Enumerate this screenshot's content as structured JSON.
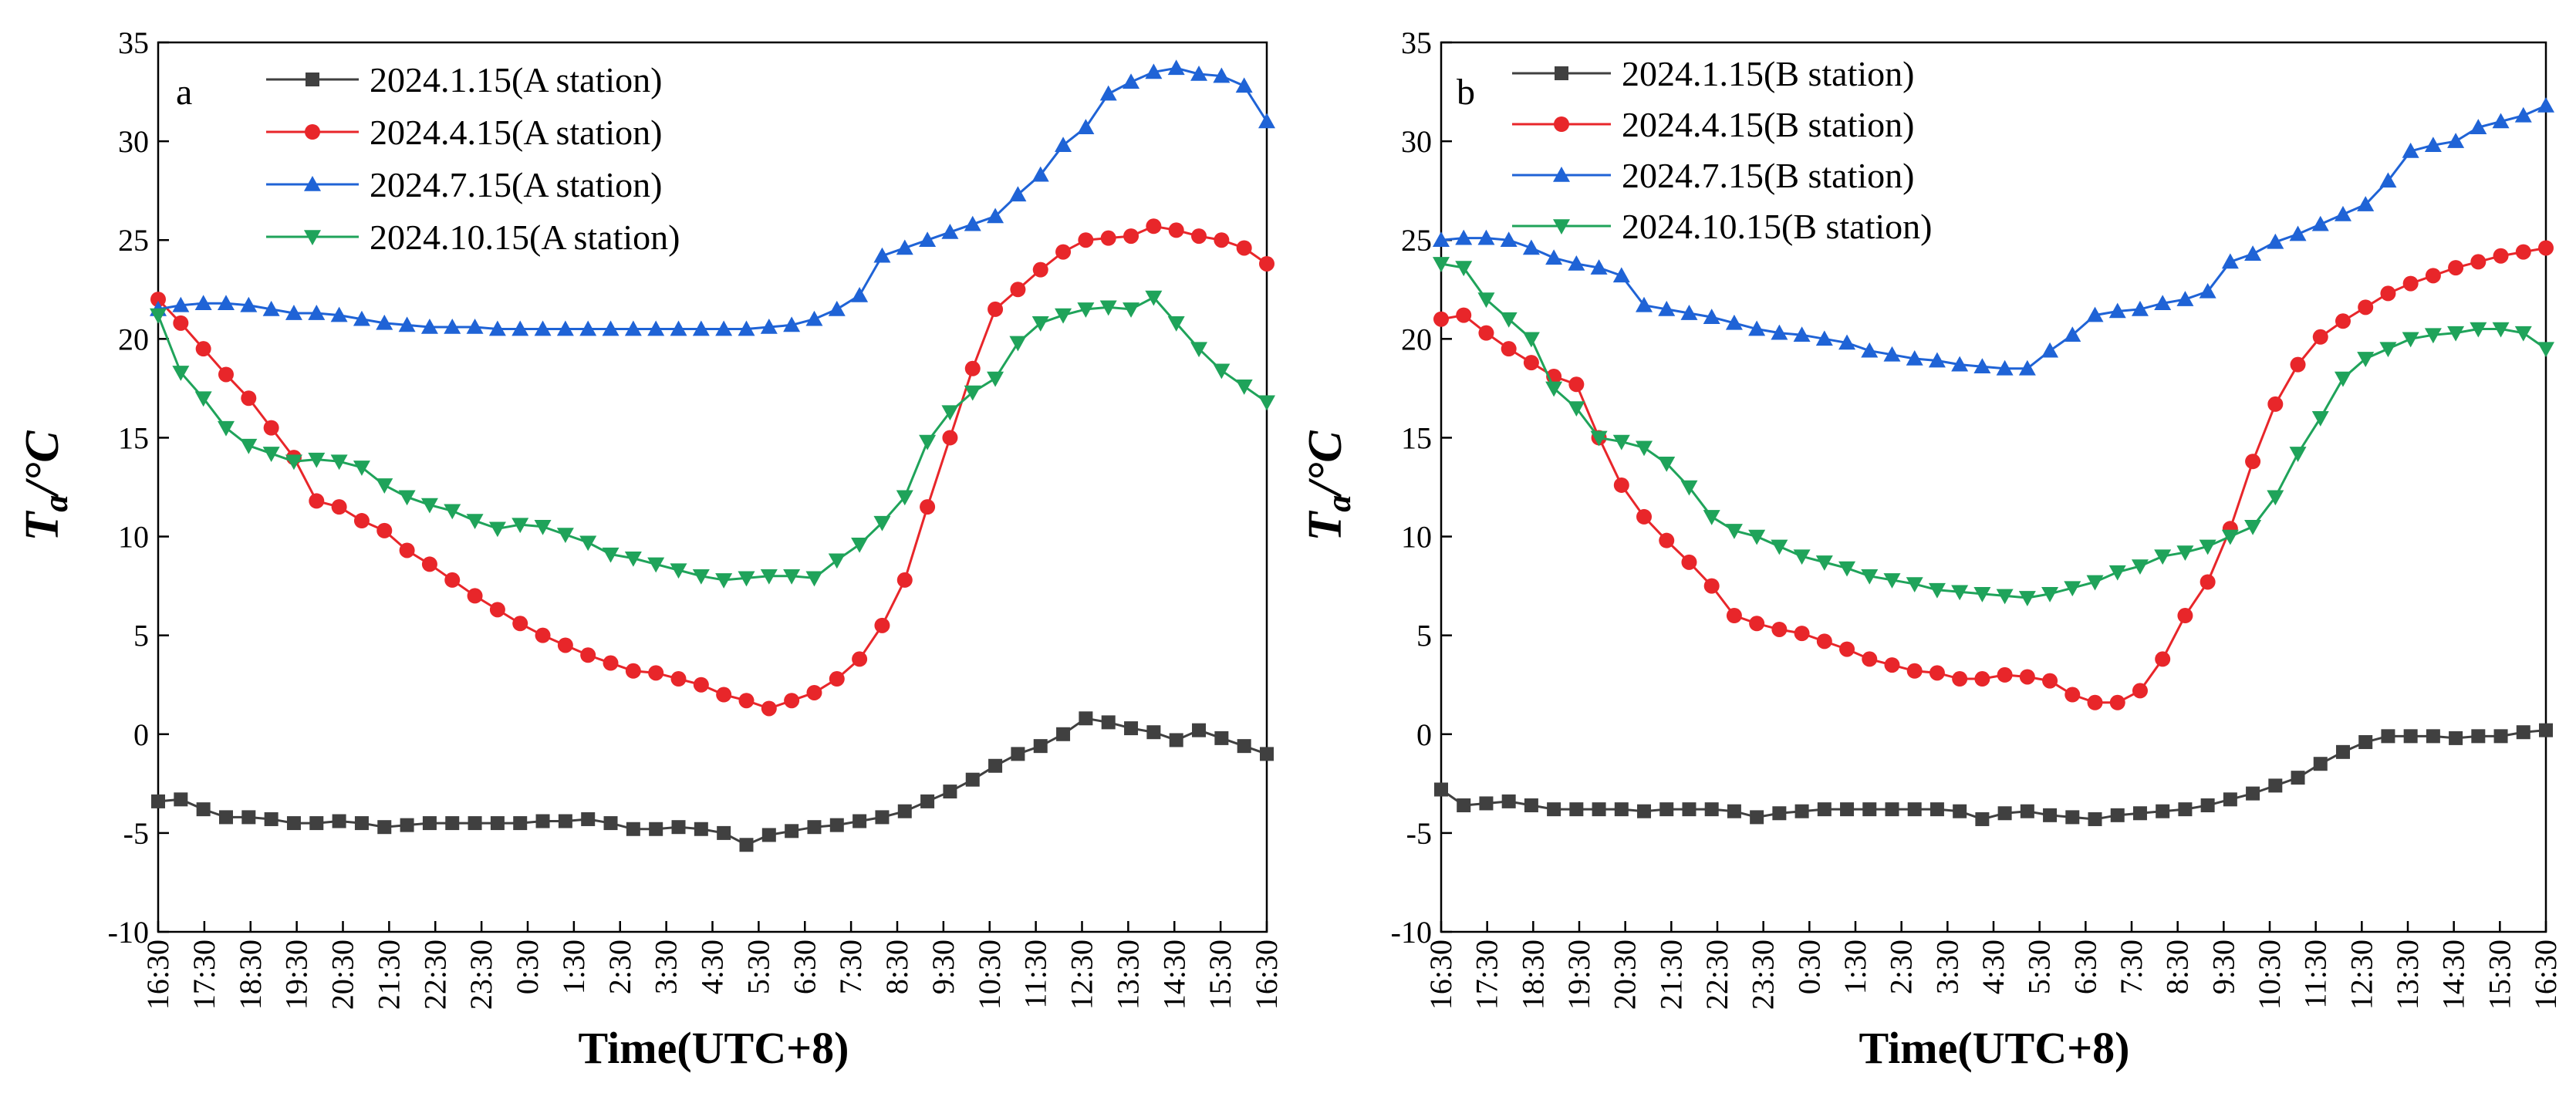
{
  "chart_data": [
    {
      "type": "line",
      "panel": "a",
      "title": "",
      "xlabel": "Time(UTC+8)",
      "ylabel_main": "T",
      "ylabel_sub": "a",
      "ylabel_unit": "/°C",
      "ylim": [
        -10,
        35
      ],
      "yticks": [
        -10,
        -5,
        0,
        5,
        10,
        15,
        20,
        25,
        30,
        35
      ],
      "xticks": [
        "16:30",
        "17:30",
        "18:30",
        "19:30",
        "20:30",
        "21:30",
        "22:30",
        "23:30",
        "0:30",
        "1:30",
        "2:30",
        "3:30",
        "4:30",
        "5:30",
        "6:30",
        "7:30",
        "8:30",
        "9:30",
        "10:30",
        "11:30",
        "12:30",
        "13:30",
        "14:30",
        "15:30",
        "16:30"
      ],
      "legend_position": "top-left",
      "series": [
        {
          "name": "2024.1.15(A station)",
          "color": "#404040",
          "marker": "square",
          "values": [
            -3.4,
            -3.3,
            -3.8,
            -4.2,
            -4.2,
            -4.3,
            -4.5,
            -4.5,
            -4.4,
            -4.5,
            -4.7,
            -4.6,
            -4.5,
            -4.5,
            -4.5,
            -4.5,
            -4.5,
            -4.4,
            -4.4,
            -4.3,
            -4.5,
            -4.8,
            -4.8,
            -4.7,
            -4.8,
            -5.0,
            -5.6,
            -5.1,
            -4.9,
            -4.7,
            -4.6,
            -4.4,
            -4.2,
            -3.9,
            -3.4,
            -2.9,
            -2.3,
            -1.6,
            -1.0,
            -0.6,
            0.0,
            0.8,
            0.6,
            0.3,
            0.1,
            -0.3,
            0.2,
            -0.2,
            -0.6,
            -1.0
          ]
        },
        {
          "name": "2024.4.15(A station)",
          "color": "#e8262a",
          "marker": "circle",
          "values": [
            22.0,
            20.8,
            19.5,
            18.2,
            17.0,
            15.5,
            14.0,
            11.8,
            11.5,
            10.8,
            10.3,
            9.3,
            8.6,
            7.8,
            7.0,
            6.3,
            5.6,
            5.0,
            4.5,
            4.0,
            3.6,
            3.2,
            3.1,
            2.8,
            2.5,
            2.0,
            1.7,
            1.3,
            1.7,
            2.1,
            2.8,
            3.8,
            5.5,
            7.8,
            11.5,
            15.0,
            18.5,
            21.5,
            22.5,
            23.5,
            24.4,
            25.0,
            25.1,
            25.2,
            25.7,
            25.5,
            25.2,
            25.0,
            24.6,
            23.8
          ]
        },
        {
          "name": "2024.7.15(A station)",
          "color": "#1f63d6",
          "marker": "triangle-up",
          "values": [
            21.5,
            21.7,
            21.8,
            21.8,
            21.7,
            21.5,
            21.3,
            21.3,
            21.2,
            21.0,
            20.8,
            20.7,
            20.6,
            20.6,
            20.6,
            20.5,
            20.5,
            20.5,
            20.5,
            20.5,
            20.5,
            20.5,
            20.5,
            20.5,
            20.5,
            20.5,
            20.5,
            20.6,
            20.7,
            21.0,
            21.5,
            22.2,
            24.2,
            24.6,
            25.0,
            25.4,
            25.8,
            26.2,
            27.3,
            28.3,
            29.8,
            30.7,
            32.4,
            33.0,
            33.5,
            33.7,
            33.4,
            33.3,
            32.8,
            31.0
          ]
        },
        {
          "name": "2024.10.15(A station)",
          "color": "#1fa35a",
          "marker": "triangle-down",
          "values": [
            21.2,
            18.3,
            17.0,
            15.5,
            14.6,
            14.2,
            13.8,
            13.9,
            13.8,
            13.5,
            12.6,
            12.0,
            11.6,
            11.3,
            10.8,
            10.4,
            10.6,
            10.5,
            10.1,
            9.7,
            9.1,
            8.9,
            8.6,
            8.3,
            8.0,
            7.8,
            7.9,
            8.0,
            8.0,
            7.9,
            8.8,
            9.6,
            10.7,
            12.0,
            14.8,
            16.3,
            17.3,
            18.0,
            19.8,
            20.8,
            21.2,
            21.5,
            21.6,
            21.5,
            22.1,
            20.8,
            19.5,
            18.4,
            17.6,
            16.8
          ]
        }
      ]
    },
    {
      "type": "line",
      "panel": "b",
      "title": "",
      "xlabel": "Time(UTC+8)",
      "ylabel_main": "T",
      "ylabel_sub": "a",
      "ylabel_unit": "/°C",
      "ylim": [
        -10,
        35
      ],
      "yticks": [
        -10,
        -5,
        0,
        5,
        10,
        15,
        20,
        25,
        30,
        35
      ],
      "xticks": [
        "16:30",
        "17:30",
        "18:30",
        "19:30",
        "20:30",
        "21:30",
        "22:30",
        "23:30",
        "0:30",
        "1:30",
        "2:30",
        "3:30",
        "4:30",
        "5:30",
        "6:30",
        "7:30",
        "8:30",
        "9:30",
        "10:30",
        "11:30",
        "12:30",
        "13:30",
        "14:30",
        "15:30",
        "16:30"
      ],
      "legend_position": "top-left",
      "series": [
        {
          "name": "2024.1.15(B station)",
          "color": "#404040",
          "marker": "square",
          "values": [
            -2.8,
            -3.6,
            -3.5,
            -3.4,
            -3.6,
            -3.8,
            -3.8,
            -3.8,
            -3.8,
            -3.9,
            -3.8,
            -3.8,
            -3.8,
            -3.9,
            -4.2,
            -4.0,
            -3.9,
            -3.8,
            -3.8,
            -3.8,
            -3.8,
            -3.8,
            -3.8,
            -3.9,
            -4.3,
            -4.0,
            -3.9,
            -4.1,
            -4.2,
            -4.3,
            -4.1,
            -4.0,
            -3.9,
            -3.8,
            -3.6,
            -3.3,
            -3.0,
            -2.6,
            -2.2,
            -1.5,
            -0.9,
            -0.4,
            -0.1,
            -0.1,
            -0.1,
            -0.2,
            -0.1,
            -0.1,
            0.1,
            0.2
          ]
        },
        {
          "name": "2024.4.15(B station)",
          "color": "#e8262a",
          "marker": "circle",
          "values": [
            21.0,
            21.2,
            20.3,
            19.5,
            18.8,
            18.1,
            17.7,
            15.0,
            12.6,
            11.0,
            9.8,
            8.7,
            7.5,
            6.0,
            5.6,
            5.3,
            5.1,
            4.7,
            4.3,
            3.8,
            3.5,
            3.2,
            3.1,
            2.8,
            2.8,
            3.0,
            2.9,
            2.7,
            2.0,
            1.6,
            1.6,
            2.2,
            3.8,
            6.0,
            7.7,
            10.4,
            13.8,
            16.7,
            18.7,
            20.1,
            20.9,
            21.6,
            22.3,
            22.8,
            23.2,
            23.6,
            23.9,
            24.2,
            24.4,
            24.6
          ]
        },
        {
          "name": "2024.7.15(B station)",
          "color": "#1f63d6",
          "marker": "triangle-up",
          "values": [
            25.0,
            25.1,
            25.1,
            25.0,
            24.6,
            24.1,
            23.8,
            23.6,
            23.2,
            21.7,
            21.5,
            21.3,
            21.1,
            20.8,
            20.5,
            20.3,
            20.2,
            20.0,
            19.8,
            19.4,
            19.2,
            19.0,
            18.9,
            18.7,
            18.6,
            18.5,
            18.5,
            19.4,
            20.2,
            21.2,
            21.4,
            21.5,
            21.8,
            22.0,
            22.4,
            23.9,
            24.3,
            24.9,
            25.3,
            25.8,
            26.3,
            26.8,
            28.0,
            29.5,
            29.8,
            30.0,
            30.7,
            31.0,
            31.3,
            31.8
          ]
        },
        {
          "name": "2024.10.15(B station)",
          "color": "#1fa35a",
          "marker": "triangle-down",
          "values": [
            23.8,
            23.6,
            22.0,
            21.0,
            20.0,
            17.5,
            16.5,
            15.0,
            14.8,
            14.5,
            13.7,
            12.5,
            11.0,
            10.3,
            10.0,
            9.5,
            9.0,
            8.7,
            8.4,
            8.0,
            7.8,
            7.6,
            7.3,
            7.2,
            7.1,
            7.0,
            6.9,
            7.1,
            7.4,
            7.7,
            8.2,
            8.5,
            9.0,
            9.2,
            9.5,
            10.0,
            10.5,
            12.0,
            14.2,
            16.0,
            18.0,
            19.0,
            19.5,
            20.0,
            20.2,
            20.3,
            20.5,
            20.5,
            20.3,
            19.5
          ]
        }
      ]
    }
  ]
}
